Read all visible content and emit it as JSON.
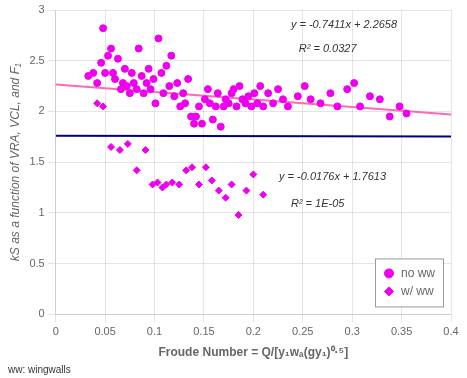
{
  "chart_data": {
    "type": "scatter",
    "xlabel": "Froude Number = Q/[y₁wₐ(gy₁)⁰·⁵]",
    "ylabel": "kS as a function of VRA, VCL, and F₁",
    "xlim": [
      0,
      0.4
    ],
    "ylim": [
      0,
      3
    ],
    "xticks": [
      0,
      0.05,
      0.1,
      0.15,
      0.2,
      0.25,
      0.3,
      0.35,
      0.4
    ],
    "yticks": [
      0,
      0.5,
      1,
      1.5,
      2,
      2.5,
      3
    ],
    "grid": true,
    "legend": "lower right",
    "series": [
      {
        "name": "no ww",
        "type": "scatter",
        "marker": "circle",
        "color": "#EE00EE",
        "x": [
          0.033,
          0.038,
          0.042,
          0.046,
          0.048,
          0.05,
          0.053,
          0.056,
          0.058,
          0.06,
          0.063,
          0.066,
          0.068,
          0.07,
          0.072,
          0.075,
          0.077,
          0.079,
          0.082,
          0.084,
          0.087,
          0.089,
          0.092,
          0.094,
          0.096,
          0.099,
          0.101,
          0.104,
          0.107,
          0.109,
          0.112,
          0.115,
          0.117,
          0.12,
          0.123,
          0.126,
          0.129,
          0.131,
          0.134,
          0.137,
          0.14,
          0.142,
          0.145,
          0.148,
          0.151,
          0.154,
          0.156,
          0.159,
          0.162,
          0.164,
          0.167,
          0.17,
          0.172,
          0.175,
          0.178,
          0.18,
          0.183,
          0.186,
          0.189,
          0.192,
          0.195,
          0.198,
          0.201,
          0.204,
          0.207,
          0.21,
          0.215,
          0.22,
          0.225,
          0.23,
          0.235,
          0.245,
          0.252,
          0.258,
          0.268,
          0.278,
          0.285,
          0.295,
          0.302,
          0.308,
          0.318,
          0.328,
          0.338,
          0.348,
          0.355
        ],
        "values": [
          2.35,
          2.38,
          2.28,
          2.48,
          2.82,
          2.38,
          2.55,
          2.62,
          2.38,
          2.32,
          2.52,
          2.22,
          2.28,
          2.42,
          2.25,
          2.18,
          2.38,
          2.28,
          2.22,
          2.62,
          2.35,
          2.18,
          2.28,
          2.42,
          2.22,
          2.32,
          2.08,
          2.72,
          2.38,
          2.18,
          2.45,
          2.25,
          2.55,
          2.15,
          2.28,
          2.05,
          2.18,
          2.08,
          2.32,
          1.95,
          1.88,
          1.95,
          2.05,
          1.88,
          2.12,
          2.22,
          2.08,
          1.92,
          2.05,
          2.18,
          1.85,
          2.05,
          2.12,
          2.08,
          2.18,
          2.22,
          2.05,
          2.25,
          2.12,
          2.08,
          2.15,
          2.05,
          2.18,
          2.08,
          2.25,
          2.05,
          2.18,
          2.08,
          2.22,
          2.12,
          2.05,
          2.15,
          2.25,
          2.12,
          2.08,
          2.18,
          2.05,
          2.22,
          2.28,
          2.05,
          2.15,
          2.12,
          1.95,
          2.05,
          1.98
        ]
      },
      {
        "name": "w/ ww",
        "type": "scatter",
        "marker": "diamond",
        "color": "#EE00EE",
        "x": [
          0.042,
          0.048,
          0.056,
          0.065,
          0.073,
          0.082,
          0.091,
          0.098,
          0.103,
          0.108,
          0.112,
          0.118,
          0.125,
          0.132,
          0.138,
          0.145,
          0.152,
          0.158,
          0.165,
          0.172,
          0.178,
          0.185,
          0.193,
          0.2,
          0.21
        ],
        "values": [
          2.08,
          2.05,
          1.65,
          1.62,
          1.68,
          1.42,
          1.62,
          1.28,
          1.3,
          1.25,
          1.28,
          1.3,
          1.28,
          1.42,
          1.45,
          1.28,
          1.45,
          1.32,
          1.22,
          1.15,
          1.28,
          0.98,
          1.22,
          1.38,
          1.18
        ]
      },
      {
        "type": "line",
        "line_style": "solid",
        "color": "#FF69B4",
        "x": [
          0,
          0.4
        ],
        "values": [
          2.2658,
          1.96936
        ]
      },
      {
        "type": "line",
        "line_style": "solid",
        "color": "#000080",
        "x": [
          0,
          0.4
        ],
        "values": [
          1.7613,
          1.75426
        ]
      }
    ],
    "annotations": [
      "y = -0.7411x + 2.2658",
      "R² = 0.0327",
      "y = -0.0176x + 1.7613",
      "R² = 1E-05"
    ],
    "footnote": "ww: wingwalls"
  }
}
